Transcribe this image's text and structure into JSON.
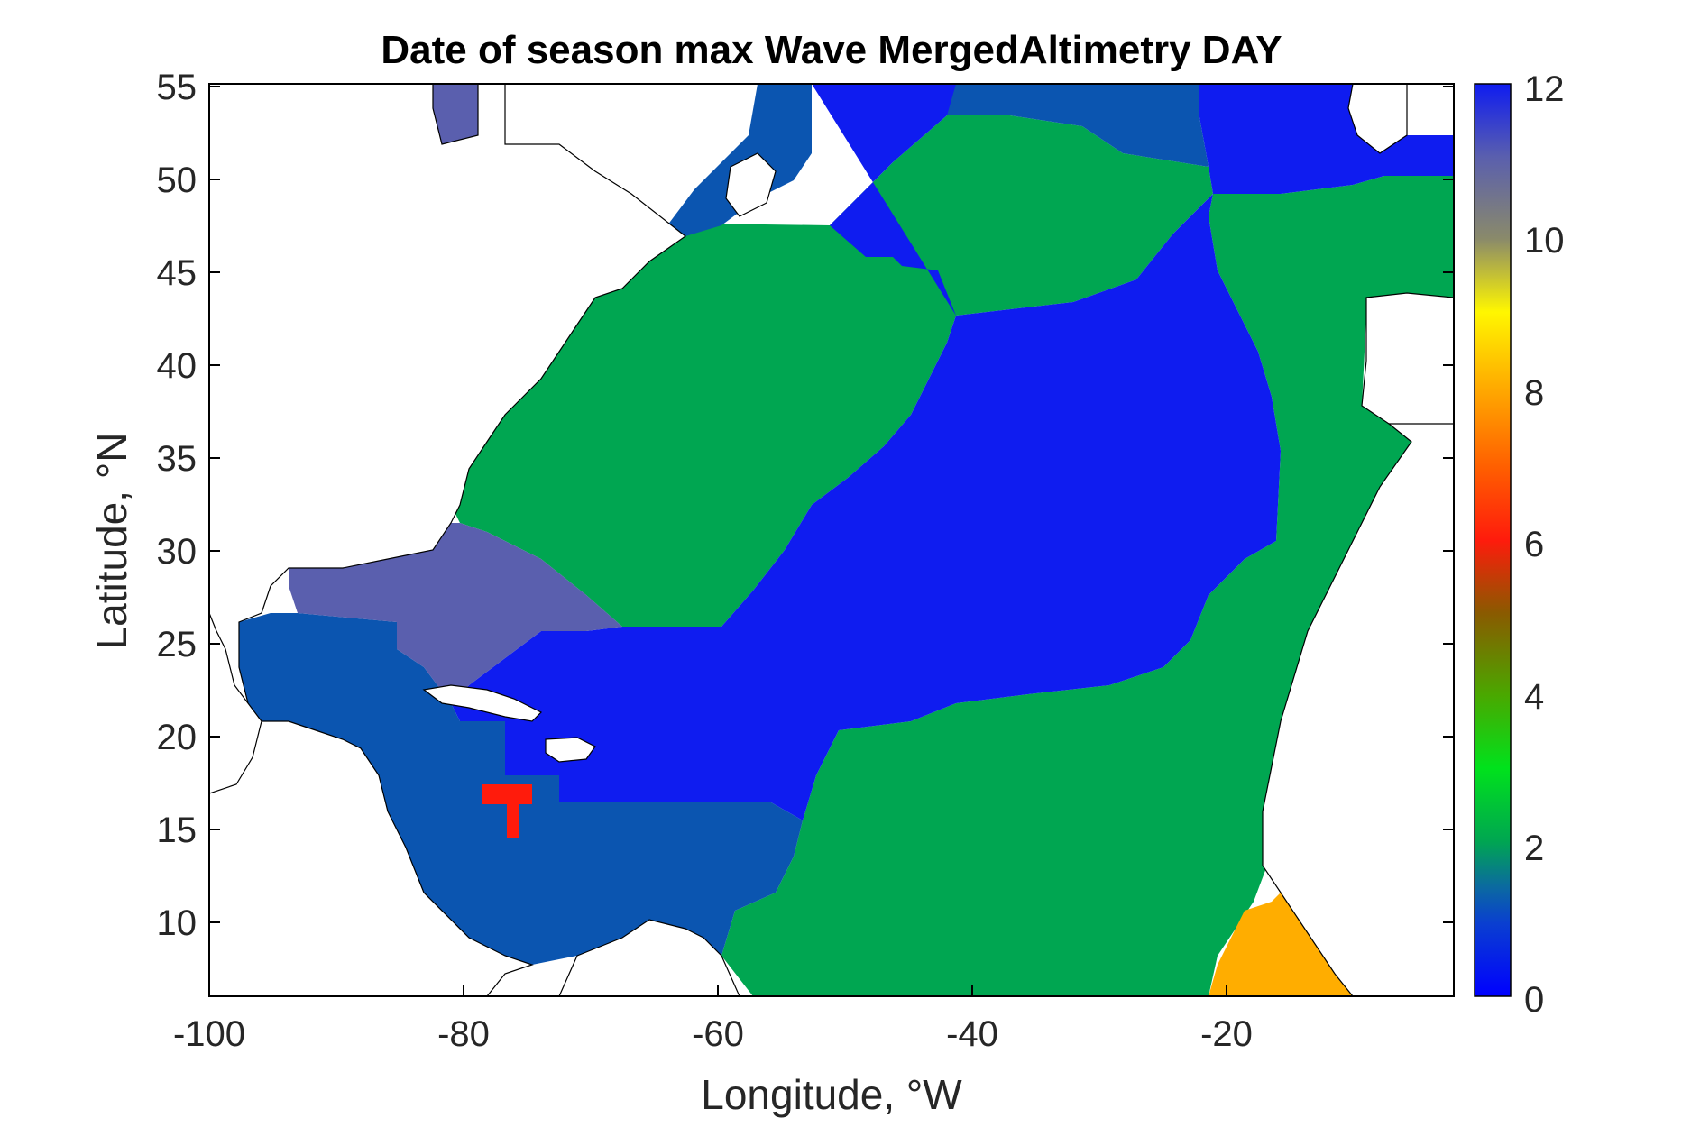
{
  "title": "Date of season max Wave MergedAltimetry DAY",
  "xlabel": "Longitude, °W",
  "ylabel": "Latitude, °N",
  "x_ticks": [
    "-100",
    "-80",
    "-60",
    "-40",
    "-20"
  ],
  "y_ticks": [
    "55",
    "50",
    "45",
    "40",
    "35",
    "30",
    "25",
    "20",
    "15",
    "10"
  ],
  "colorbar_ticks": [
    "12",
    "10",
    "8",
    "6",
    "4",
    "2",
    "0"
  ],
  "colors": {
    "land": "#ffffff",
    "month_0_1": "#0f1cf0",
    "month_1": "#0b55b0",
    "month_11": "#5a5fae",
    "month_2": "#00a651",
    "month_6": "#ff1b0c",
    "month_7": "#ff5f00",
    "month_8": "#ffad00",
    "month_9": "#f2ef14"
  },
  "chart_data": {
    "type": "heatmap",
    "xlim": [
      -100,
      -2
    ],
    "ylim": [
      6,
      55
    ],
    "clim": [
      0,
      12
    ],
    "colorbar": "vertical right",
    "grid": false
  }
}
